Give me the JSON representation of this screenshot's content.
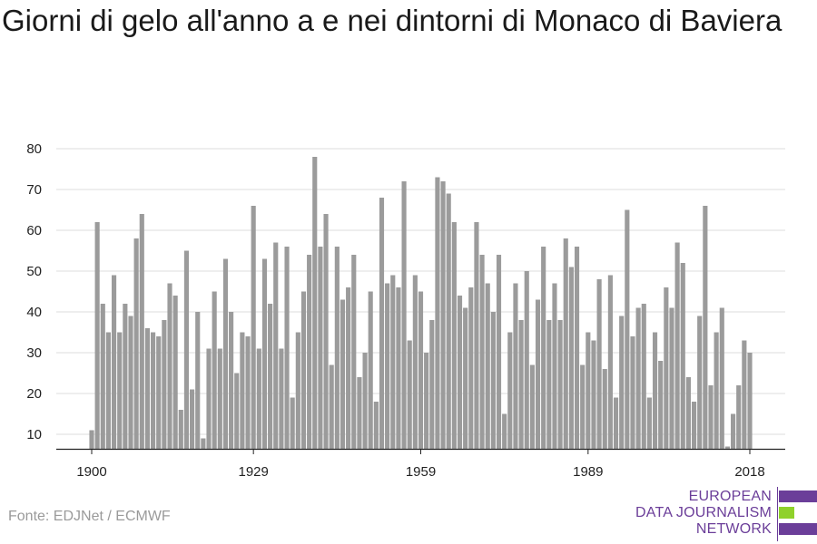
{
  "title": "Giorni di gelo all'anno a e nei dintorni di Monaco di Baviera",
  "source": "Fonte: EDJNet / ECMWF",
  "logo": {
    "line1": "EUROPEAN",
    "line2": "DATA JOURNALISM",
    "line3": "NETWORK",
    "colors": {
      "purple": "#6b3e99",
      "green": "#8fd12b"
    }
  },
  "colors": {
    "bar": "#9b9b9b",
    "grid": "#dcdcdc",
    "axis": "#222222",
    "text": "#222222"
  },
  "chart_data": {
    "type": "bar",
    "xlabel": "",
    "ylabel": "",
    "ylim": [
      6,
      82
    ],
    "yticks": [
      10,
      20,
      30,
      40,
      50,
      60,
      70,
      80
    ],
    "xtick_labels": [
      "1900",
      "1929",
      "1959",
      "1989",
      "2018"
    ],
    "grid": true,
    "x": [
      1900,
      1901,
      1902,
      1903,
      1904,
      1905,
      1906,
      1907,
      1908,
      1909,
      1910,
      1911,
      1912,
      1913,
      1914,
      1915,
      1916,
      1917,
      1918,
      1919,
      1920,
      1921,
      1922,
      1923,
      1924,
      1925,
      1926,
      1927,
      1928,
      1929,
      1930,
      1931,
      1932,
      1933,
      1934,
      1935,
      1936,
      1937,
      1938,
      1939,
      1940,
      1941,
      1942,
      1943,
      1944,
      1945,
      1946,
      1947,
      1948,
      1949,
      1950,
      1951,
      1952,
      1953,
      1954,
      1955,
      1956,
      1957,
      1958,
      1959,
      1960,
      1961,
      1962,
      1963,
      1964,
      1965,
      1966,
      1967,
      1968,
      1969,
      1970,
      1971,
      1972,
      1973,
      1974,
      1975,
      1976,
      1977,
      1978,
      1979,
      1980,
      1981,
      1982,
      1983,
      1984,
      1985,
      1986,
      1987,
      1988,
      1989,
      1990,
      1991,
      1992,
      1993,
      1994,
      1995,
      1996,
      1997,
      1998,
      1999,
      2000,
      2001,
      2002,
      2003,
      2004,
      2005,
      2006,
      2007,
      2008,
      2009,
      2010,
      2011,
      2012,
      2013,
      2014,
      2015,
      2016,
      2017,
      2018
    ],
    "values": [
      11,
      62,
      42,
      35,
      49,
      35,
      42,
      39,
      58,
      64,
      36,
      35,
      34,
      38,
      47,
      44,
      16,
      55,
      21,
      40,
      9,
      31,
      45,
      31,
      53,
      40,
      25,
      35,
      34,
      66,
      31,
      53,
      42,
      57,
      31,
      56,
      19,
      35,
      45,
      54,
      78,
      56,
      64,
      27,
      56,
      43,
      46,
      54,
      24,
      30,
      45,
      18,
      68,
      47,
      49,
      46,
      72,
      33,
      49,
      45,
      30,
      38,
      73,
      72,
      69,
      62,
      44,
      41,
      46,
      62,
      54,
      47,
      40,
      54,
      15,
      35,
      47,
      38,
      50,
      27,
      43,
      56,
      38,
      47,
      38,
      58,
      51,
      56,
      27,
      35,
      33,
      48,
      26,
      49,
      19,
      39,
      65,
      34,
      41,
      42,
      19,
      35,
      28,
      46,
      41,
      57,
      52,
      24,
      18,
      39,
      66,
      22,
      35,
      41,
      7,
      15,
      22,
      33,
      30
    ]
  }
}
